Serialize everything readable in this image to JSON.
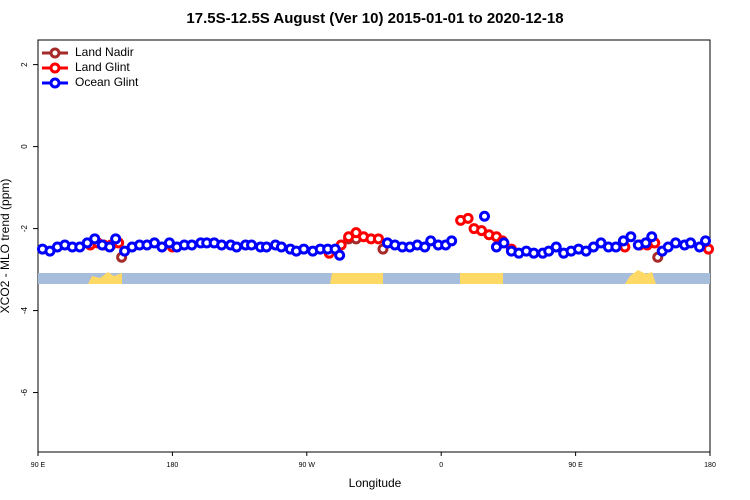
{
  "chart_data": {
    "type": "scatter",
    "title": "17.5S-12.5S August (Ver 10)   2015-01-01 to 2020-12-18",
    "x_label": "Longitude",
    "y_label": "XCO2 - MLO trend (ppm)",
    "xlim": [
      90,
      540
    ],
    "ylim": [
      -7.45,
      2.6
    ],
    "xticks": [
      {
        "value": 90,
        "label": "90 E"
      },
      180,
      {
        "value": 270,
        "label": "90 W"
      },
      {
        "value": 360,
        "label": "0"
      },
      {
        "value": 450,
        "label": "90 E"
      },
      {
        "value": 540,
        "label": "180"
      }
    ],
    "yticks": [
      -6,
      -4,
      -2,
      0,
      2
    ],
    "legend": "top-left",
    "series": [
      {
        "name": "Land Nadir",
        "color": "#a52a2a",
        "x": [
          146,
          298,
          303,
          321,
          505
        ],
        "values": [
          -2.7,
          -2.25,
          -2.25,
          -2.5,
          -2.7
        ]
      },
      {
        "name": "Land Glint",
        "color": "#ff0000",
        "x": [
          125,
          130,
          134,
          139,
          144,
          180,
          285,
          293,
          298,
          303,
          308,
          313,
          318,
          373,
          378,
          382,
          387,
          392,
          397,
          401,
          407,
          483,
          493,
          498,
          503,
          539
        ],
        "values": [
          -2.4,
          -2.35,
          -2.4,
          -2.4,
          -2.35,
          -2.45,
          -2.6,
          -2.4,
          -2.2,
          -2.1,
          -2.2,
          -2.25,
          -2.25,
          -1.8,
          -1.75,
          -2.0,
          -2.05,
          -2.15,
          -2.2,
          -2.3,
          -2.5,
          -2.45,
          -2.4,
          -2.4,
          -2.35,
          -2.5
        ]
      },
      {
        "name": "Ocean Glint",
        "color": "#0000ff",
        "x": [
          93,
          98,
          103,
          108,
          113,
          118,
          123,
          128,
          133,
          138,
          142,
          148,
          153,
          158,
          163,
          168,
          173,
          178,
          183,
          188,
          193,
          199,
          203,
          208,
          213,
          219,
          223,
          229,
          233,
          239,
          243,
          249,
          253,
          259,
          263,
          268,
          274,
          279,
          284,
          289,
          292,
          324,
          329,
          334,
          339,
          344,
          349,
          353,
          358,
          363,
          367,
          389,
          397,
          402,
          407,
          412,
          417,
          422,
          428,
          432,
          437,
          442,
          447,
          452,
          457,
          462,
          467,
          472,
          477,
          482,
          487,
          492,
          497,
          501,
          508,
          512,
          517,
          523,
          527,
          533,
          537
        ],
        "values": [
          -2.5,
          -2.55,
          -2.45,
          -2.4,
          -2.45,
          -2.45,
          -2.35,
          -2.25,
          -2.4,
          -2.45,
          -2.25,
          -2.55,
          -2.45,
          -2.4,
          -2.4,
          -2.35,
          -2.45,
          -2.35,
          -2.45,
          -2.4,
          -2.4,
          -2.35,
          -2.35,
          -2.35,
          -2.4,
          -2.4,
          -2.45,
          -2.4,
          -2.4,
          -2.45,
          -2.45,
          -2.4,
          -2.45,
          -2.5,
          -2.55,
          -2.5,
          -2.55,
          -2.5,
          -2.5,
          -2.5,
          -2.65,
          -2.35,
          -2.4,
          -2.45,
          -2.45,
          -2.4,
          -2.45,
          -2.3,
          -2.4,
          -2.4,
          -2.3,
          -1.7,
          -2.45,
          -2.35,
          -2.55,
          -2.6,
          -2.55,
          -2.6,
          -2.6,
          -2.55,
          -2.45,
          -2.6,
          -2.55,
          -2.5,
          -2.55,
          -2.45,
          -2.35,
          -2.45,
          -2.45,
          -2.3,
          -2.2,
          -2.4,
          -2.35,
          -2.2,
          -2.55,
          -2.45,
          -2.35,
          -2.4,
          -2.35,
          -2.45,
          -2.3
        ]
      }
    ]
  }
}
